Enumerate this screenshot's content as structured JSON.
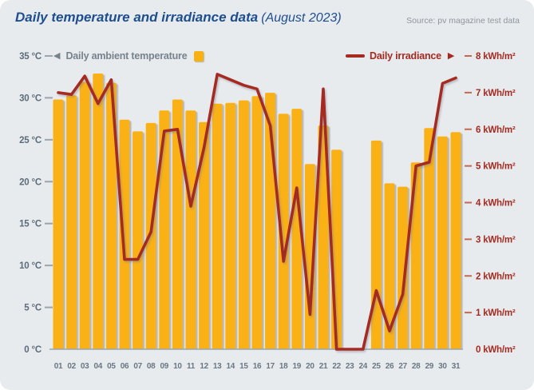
{
  "header": {
    "title": "Daily temperature and irradiance data",
    "subtitle": "(August 2023)",
    "source": "Source: pv magazine test data"
  },
  "legend": {
    "temperature_label": "Daily ambient temperature",
    "temperature_arrow": "◀",
    "irradiance_label": "Daily irradiance",
    "irradiance_arrow": "▶"
  },
  "colors": {
    "background": "#E8EBEE",
    "bar": "#F9B112",
    "line": "#A52A20",
    "title": "#1D4E8F",
    "source_text": "#8D969E",
    "left_axis_text": "#5C6C7A",
    "right_axis_text": "#A52A20",
    "axis_line": "#9AA5AE",
    "right_tick": "#C4684F"
  },
  "chart_data": {
    "type": "bar+line",
    "title": "Daily temperature and irradiance data (August 2023)",
    "x": [
      "01",
      "02",
      "03",
      "04",
      "05",
      "06",
      "07",
      "08",
      "09",
      "10",
      "11",
      "12",
      "13",
      "14",
      "15",
      "16",
      "17",
      "18",
      "19",
      "20",
      "21",
      "22",
      "23",
      "24",
      "25",
      "26",
      "27",
      "28",
      "29",
      "30",
      "31"
    ],
    "series": [
      {
        "name": "Daily ambient temperature",
        "type": "bar",
        "axis": "left",
        "unit": "°C",
        "values": [
          29.8,
          30.3,
          31.9,
          32.9,
          31.8,
          27.4,
          26.0,
          27.0,
          28.5,
          29.8,
          28.5,
          27.1,
          29.3,
          29.4,
          29.7,
          30.2,
          30.6,
          28.1,
          28.7,
          22.1,
          26.7,
          23.8,
          null,
          null,
          24.9,
          19.8,
          19.4,
          22.3,
          26.4,
          25.4,
          25.9
        ]
      },
      {
        "name": "Daily irradiance",
        "type": "line",
        "axis": "right",
        "unit": "kWh/m²",
        "values": [
          7.0,
          6.95,
          7.45,
          6.7,
          7.35,
          2.45,
          2.45,
          3.2,
          5.95,
          6.0,
          3.9,
          5.5,
          7.5,
          7.35,
          7.2,
          7.1,
          6.1,
          2.4,
          4.4,
          0.95,
          7.1,
          0,
          0,
          0,
          1.6,
          0.5,
          1.5,
          5.0,
          5.1,
          7.25,
          7.4
        ]
      }
    ],
    "left_axis": {
      "min": 0,
      "max": 35,
      "tick_values": [
        35,
        30,
        25,
        20,
        15,
        10,
        5,
        0
      ],
      "tick_labels": [
        "35 °C",
        "30 °C",
        "25 °C",
        "20 °C",
        "15 °C",
        "10 °C",
        "5 °C",
        "0 °C"
      ]
    },
    "right_axis": {
      "min": 0,
      "max": 8,
      "tick_values": [
        8,
        7,
        6,
        5,
        4,
        3,
        2,
        1,
        0
      ],
      "tick_labels": [
        "8 kWh/m²",
        "7 kWh/m²",
        "6 kWh/m²",
        "5 kWh/m²",
        "4 kWh/m²",
        "3 kWh/m²",
        "2 kWh/m²",
        "1 kWh/m²",
        "0 kWh/m²"
      ]
    },
    "grid": false,
    "legend_position": "top",
    "days_without_temperature_bar": [
      "23",
      "24"
    ]
  }
}
